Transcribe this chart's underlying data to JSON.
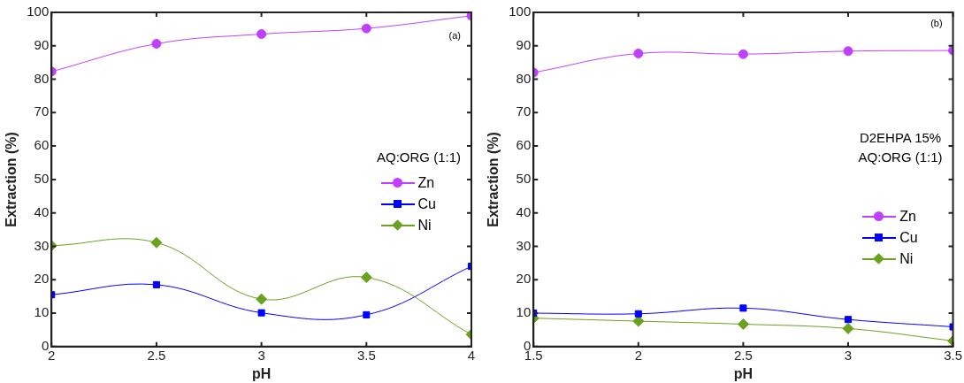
{
  "chart_data": [
    {
      "type": "line",
      "xlabel": "pH",
      "ylabel": "Extraction (%)",
      "x": [
        2,
        2.5,
        3,
        3.5,
        4
      ],
      "xlim": [
        2,
        4
      ],
      "xticks": [
        2,
        2.5,
        3,
        3.5,
        4
      ],
      "ylim": [
        0,
        100
      ],
      "yticks": [
        0,
        10,
        20,
        30,
        40,
        50,
        60,
        70,
        80,
        90,
        100
      ],
      "grid": false,
      "legend": "right",
      "annotations": [
        "(a)",
        "AQ:ORG (1:1)"
      ],
      "series": [
        {
          "name": "Zn",
          "color": "#bf40ff",
          "marker": "circle",
          "values": [
            82.3,
            90.6,
            93.5,
            95.2,
            99
          ]
        },
        {
          "name": "Cu",
          "color": "#0000ff",
          "marker": "square",
          "values": [
            15.5,
            18.5,
            10.1,
            9.5,
            24
          ]
        },
        {
          "name": "Ni",
          "color": "#6aa121",
          "marker": "diamond",
          "values": [
            30.2,
            31.1,
            14.2,
            20.7,
            3.6
          ]
        }
      ]
    },
    {
      "type": "line",
      "xlabel": "pH",
      "ylabel": "Extraction (%)",
      "x": [
        1.5,
        2,
        2.5,
        3,
        3.5
      ],
      "xlim": [
        1.5,
        3.5
      ],
      "xticks": [
        1.5,
        2,
        2.5,
        3,
        3.5
      ],
      "ylim": [
        0,
        100
      ],
      "yticks": [
        0,
        10,
        20,
        30,
        40,
        50,
        60,
        70,
        80,
        90,
        100
      ],
      "grid": false,
      "legend": "right",
      "annotations": [
        "(b)",
        "D2EHPA 15%",
        "AQ:ORG (1:1)"
      ],
      "series": [
        {
          "name": "Zn",
          "color": "#bf40ff",
          "marker": "circle",
          "values": [
            82,
            87.7,
            87.5,
            88.4,
            88.6
          ]
        },
        {
          "name": "Cu",
          "color": "#0000ff",
          "marker": "square",
          "values": [
            10,
            9.8,
            11.5,
            8.1,
            5.9
          ]
        },
        {
          "name": "Ni",
          "color": "#6aa121",
          "marker": "diamond",
          "values": [
            8.5,
            7.6,
            6.7,
            5.4,
            1.7
          ]
        }
      ]
    }
  ]
}
